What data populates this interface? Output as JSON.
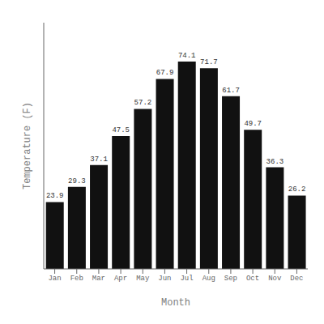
{
  "chart_data": {
    "type": "bar",
    "categories": [
      "Jan",
      "Feb",
      "Mar",
      "Apr",
      "May",
      "Jun",
      "Jul",
      "Aug",
      "Sep",
      "Oct",
      "Nov",
      "Dec"
    ],
    "values": [
      23.9,
      29.3,
      37.1,
      47.5,
      57.2,
      67.9,
      74.1,
      71.7,
      61.7,
      49.7,
      36.3,
      26.2
    ],
    "color": "#111111",
    "xlabel": "Month",
    "ylabel": "Temperature (F)",
    "ylim": [
      0,
      88
    ],
    "yticks": [],
    "grid": false,
    "data_labels": true,
    "tick_labels": "x"
  }
}
